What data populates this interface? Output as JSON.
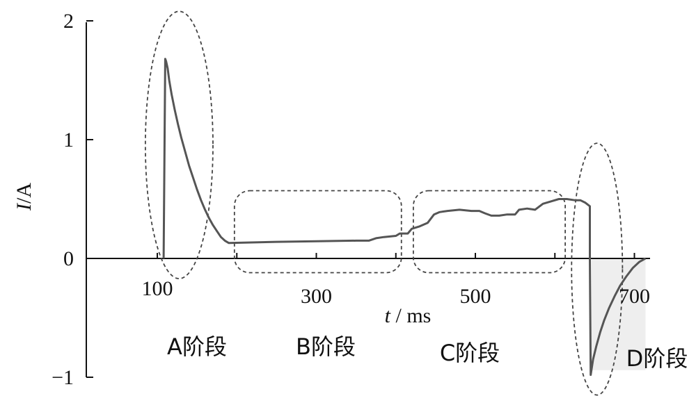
{
  "chart_data": {
    "type": "line",
    "title": "",
    "xlabel": {
      "italic": "t",
      "rest": " / ms"
    },
    "ylabel": {
      "italic": "I",
      "rest": "/A"
    },
    "xlim": [
      60,
      740
    ],
    "ylim": [
      -1,
      2
    ],
    "x_ticks": [
      100,
      300,
      500,
      700
    ],
    "x_tick_labels": [
      "100",
      "300",
      "500",
      "700"
    ],
    "y_ticks": [
      -1,
      0,
      1,
      2
    ],
    "y_tick_labels": [
      "−1",
      "0",
      "1",
      "2"
    ],
    "grid": false,
    "series": [
      {
        "color": "#555555",
        "points": [
          [
            108,
            0.0
          ],
          [
            110,
            1.68
          ],
          [
            111,
            1.66
          ],
          [
            113,
            1.6
          ],
          [
            115,
            1.5
          ],
          [
            118,
            1.38
          ],
          [
            122,
            1.25
          ],
          [
            126,
            1.13
          ],
          [
            130,
            1.02
          ],
          [
            135,
            0.9
          ],
          [
            140,
            0.78
          ],
          [
            145,
            0.68
          ],
          [
            150,
            0.58
          ],
          [
            155,
            0.49
          ],
          [
            160,
            0.41
          ],
          [
            165,
            0.34
          ],
          [
            170,
            0.28
          ],
          [
            175,
            0.23
          ],
          [
            180,
            0.18
          ],
          [
            185,
            0.15
          ],
          [
            190,
            0.13
          ],
          [
            250,
            0.14
          ],
          [
            300,
            0.145
          ],
          [
            350,
            0.15
          ],
          [
            366,
            0.15
          ],
          [
            375,
            0.17
          ],
          [
            385,
            0.18
          ],
          [
            400,
            0.19
          ],
          [
            405,
            0.21
          ],
          [
            415,
            0.21
          ],
          [
            420,
            0.25
          ],
          [
            430,
            0.27
          ],
          [
            440,
            0.3
          ],
          [
            448,
            0.37
          ],
          [
            455,
            0.39
          ],
          [
            465,
            0.4
          ],
          [
            480,
            0.41
          ],
          [
            495,
            0.4
          ],
          [
            505,
            0.4
          ],
          [
            512,
            0.38
          ],
          [
            520,
            0.36
          ],
          [
            530,
            0.36
          ],
          [
            540,
            0.37
          ],
          [
            550,
            0.37
          ],
          [
            555,
            0.41
          ],
          [
            565,
            0.42
          ],
          [
            575,
            0.41
          ],
          [
            585,
            0.46
          ],
          [
            595,
            0.48
          ],
          [
            605,
            0.5
          ],
          [
            615,
            0.5
          ],
          [
            625,
            0.49
          ],
          [
            632,
            0.49
          ],
          [
            638,
            0.47
          ],
          [
            642,
            0.45
          ],
          [
            644,
            0.44
          ],
          [
            644,
            0.0
          ],
          [
            645,
            -0.98
          ],
          [
            648,
            -0.85
          ],
          [
            652,
            -0.74
          ],
          [
            657,
            -0.62
          ],
          [
            662,
            -0.52
          ],
          [
            668,
            -0.42
          ],
          [
            675,
            -0.32
          ],
          [
            682,
            -0.23
          ],
          [
            690,
            -0.15
          ],
          [
            698,
            -0.08
          ],
          [
            706,
            -0.03
          ],
          [
            714,
            0.0
          ]
        ]
      }
    ],
    "phases": [
      {
        "label": "A阶段",
        "shape": "ellipse",
        "x_range": [
          85,
          170
        ],
        "y_range": [
          -0.17,
          2.08
        ]
      },
      {
        "label": "B阶段",
        "shape": "rounded-rect",
        "x_range": [
          197,
          407
        ],
        "y_range": [
          -0.12,
          0.57
        ]
      },
      {
        "label": "C阶段",
        "shape": "rounded-rect",
        "x_range": [
          422,
          613
        ],
        "y_range": [
          -0.12,
          0.57
        ]
      },
      {
        "label": "D阶段",
        "shape": "ellipse",
        "x_range": [
          621,
          685
        ],
        "y_range": [
          -1.15,
          0.97
        ]
      }
    ],
    "shaded_region": {
      "x_range": [
        646,
        714
      ],
      "y_range": [
        -0.94,
        0.0
      ],
      "color": "#eeeeee"
    }
  }
}
